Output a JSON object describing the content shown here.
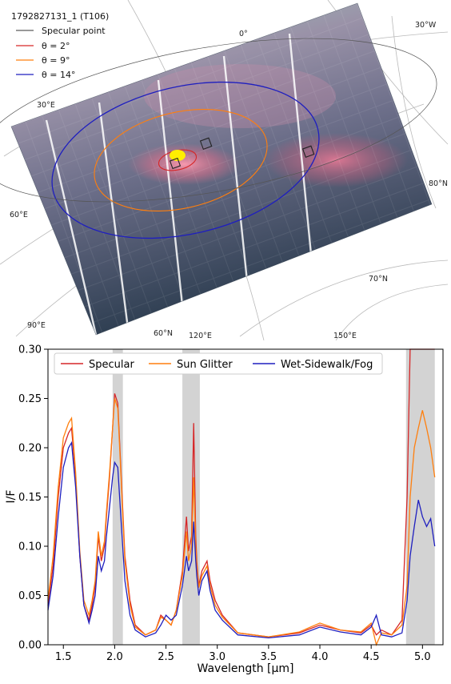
{
  "map": {
    "title": "1792827131_1 (T106)",
    "legend": [
      {
        "label": "Specular point",
        "color": "#333333"
      },
      {
        "label": "θ = 2°",
        "color": "#d62728"
      },
      {
        "label": "θ = 9°",
        "color": "#ff7f0e"
      },
      {
        "label": "θ = 14°",
        "color": "#1f1fbf"
      }
    ],
    "graticule_labels": [
      "0°",
      "30°W",
      "30°E",
      "80°N",
      "60°E",
      "70°N",
      "90°E",
      "60°N",
      "120°E",
      "150°E"
    ]
  },
  "chart_data": {
    "type": "line",
    "xlabel": "Wavelength [μm]",
    "ylabel": "I/F",
    "xlim": [
      1.35,
      5.2
    ],
    "ylim": [
      0.0,
      0.3
    ],
    "xticks": [
      "1.5",
      "2.0",
      "2.5",
      "3.0",
      "3.5",
      "4.0",
      "4.5",
      "5.0"
    ],
    "yticks": [
      "0.00",
      "0.05",
      "0.10",
      "0.15",
      "0.20",
      "0.25",
      "0.30"
    ],
    "legend_position": "top",
    "shaded_bands": [
      [
        1.98,
        2.08
      ],
      [
        2.66,
        2.83
      ],
      [
        4.84,
        5.12
      ]
    ],
    "x": [
      1.35,
      1.4,
      1.45,
      1.5,
      1.55,
      1.58,
      1.62,
      1.66,
      1.7,
      1.75,
      1.78,
      1.81,
      1.84,
      1.87,
      1.9,
      1.92,
      1.95,
      1.98,
      2.0,
      2.03,
      2.06,
      2.1,
      2.15,
      2.2,
      2.3,
      2.4,
      2.45,
      2.5,
      2.55,
      2.6,
      2.66,
      2.7,
      2.72,
      2.75,
      2.77,
      2.79,
      2.8,
      2.82,
      2.85,
      2.9,
      2.93,
      2.98,
      3.05,
      3.2,
      3.5,
      3.8,
      4.0,
      4.2,
      4.4,
      4.5,
      4.55,
      4.6,
      4.7,
      4.8,
      4.85,
      4.88,
      4.92,
      4.96,
      5.0,
      5.04,
      5.08,
      5.12
    ],
    "series": [
      {
        "name": "Specular",
        "color": "#d62728",
        "values": [
          0.04,
          0.08,
          0.15,
          0.2,
          0.215,
          0.22,
          0.17,
          0.09,
          0.04,
          0.025,
          0.04,
          0.06,
          0.11,
          0.085,
          0.1,
          0.13,
          0.17,
          0.22,
          0.255,
          0.245,
          0.18,
          0.09,
          0.045,
          0.02,
          0.01,
          0.015,
          0.03,
          0.025,
          0.02,
          0.035,
          0.075,
          0.13,
          0.095,
          0.11,
          0.225,
          0.11,
          0.085,
          0.06,
          0.075,
          0.085,
          0.065,
          0.045,
          0.03,
          0.012,
          0.008,
          0.012,
          0.02,
          0.015,
          0.012,
          0.02,
          0.01,
          0.015,
          0.01,
          0.025,
          0.15,
          0.3,
          0.3,
          0.3,
          0.3,
          0.3,
          0.3,
          0.3
        ]
      },
      {
        "name": "Sun Glitter",
        "color": "#ff7f0e",
        "values": [
          0.045,
          0.09,
          0.16,
          0.21,
          0.225,
          0.23,
          0.175,
          0.095,
          0.045,
          0.03,
          0.045,
          0.065,
          0.115,
          0.09,
          0.105,
          0.135,
          0.175,
          0.22,
          0.25,
          0.24,
          0.175,
          0.085,
          0.04,
          0.018,
          0.01,
          0.015,
          0.028,
          0.025,
          0.02,
          0.035,
          0.07,
          0.115,
          0.085,
          0.1,
          0.17,
          0.1,
          0.08,
          0.058,
          0.07,
          0.08,
          0.06,
          0.04,
          0.028,
          0.012,
          0.008,
          0.013,
          0.022,
          0.015,
          0.013,
          0.022,
          0.0,
          0.012,
          0.01,
          0.02,
          0.06,
          0.15,
          0.2,
          0.22,
          0.238,
          0.22,
          0.2,
          0.17
        ]
      },
      {
        "name": "Wet-Sidewalk/Fog",
        "color": "#1f1fbf",
        "values": [
          0.035,
          0.07,
          0.13,
          0.18,
          0.2,
          0.205,
          0.16,
          0.09,
          0.04,
          0.022,
          0.035,
          0.05,
          0.09,
          0.075,
          0.085,
          0.11,
          0.14,
          0.17,
          0.185,
          0.18,
          0.13,
          0.065,
          0.03,
          0.015,
          0.008,
          0.012,
          0.02,
          0.03,
          0.025,
          0.03,
          0.06,
          0.09,
          0.075,
          0.085,
          0.125,
          0.085,
          0.07,
          0.05,
          0.065,
          0.075,
          0.055,
          0.035,
          0.025,
          0.01,
          0.007,
          0.01,
          0.018,
          0.013,
          0.01,
          0.018,
          0.03,
          0.01,
          0.008,
          0.012,
          0.045,
          0.09,
          0.12,
          0.147,
          0.13,
          0.12,
          0.128,
          0.1
        ]
      }
    ]
  }
}
